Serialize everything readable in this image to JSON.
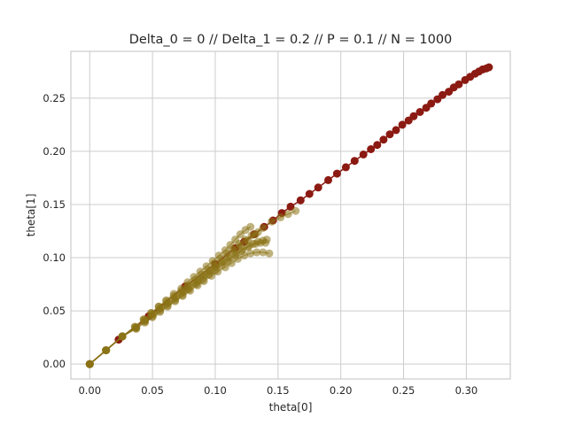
{
  "chart_data": {
    "type": "scatter",
    "title": "Delta_0 = 0 // Delta_1 = 0.2 // P = 0.1 // N = 1000",
    "xlabel": "theta[0]",
    "ylabel": "theta[1]",
    "xlim": [
      -0.015,
      0.335
    ],
    "ylim": [
      -0.014,
      0.294
    ],
    "xticks": [
      0.0,
      0.05,
      0.1,
      0.15,
      0.2,
      0.25,
      0.3
    ],
    "xtick_labels": [
      "0.00",
      "0.05",
      "0.10",
      "0.15",
      "0.20",
      "0.25",
      "0.30"
    ],
    "yticks": [
      0.0,
      0.05,
      0.1,
      0.15,
      0.2,
      0.25
    ],
    "ytick_labels": [
      "0.00",
      "0.05",
      "0.10",
      "0.15",
      "0.20",
      "0.25"
    ],
    "grid": true,
    "series": [
      {
        "color": "#8b1a12",
        "points": [
          [
            0.0,
            0.0
          ],
          [
            0.023,
            0.023
          ],
          [
            0.047,
            0.045
          ],
          [
            0.076,
            0.073
          ],
          [
            0.1,
            0.094
          ],
          [
            0.116,
            0.109
          ],
          [
            0.123,
            0.115
          ],
          [
            0.131,
            0.122
          ],
          [
            0.139,
            0.129
          ],
          [
            0.146,
            0.135
          ],
          [
            0.153,
            0.142
          ],
          [
            0.16,
            0.148
          ],
          [
            0.168,
            0.154
          ],
          [
            0.175,
            0.16
          ],
          [
            0.182,
            0.166
          ],
          [
            0.19,
            0.173
          ],
          [
            0.197,
            0.179
          ],
          [
            0.204,
            0.185
          ],
          [
            0.211,
            0.191
          ],
          [
            0.218,
            0.197
          ],
          [
            0.224,
            0.202
          ],
          [
            0.229,
            0.206
          ],
          [
            0.234,
            0.211
          ],
          [
            0.239,
            0.216
          ],
          [
            0.244,
            0.22
          ],
          [
            0.249,
            0.225
          ],
          [
            0.254,
            0.229
          ],
          [
            0.258,
            0.233
          ],
          [
            0.263,
            0.237
          ],
          [
            0.268,
            0.241
          ],
          [
            0.272,
            0.245
          ],
          [
            0.277,
            0.249
          ],
          [
            0.281,
            0.253
          ],
          [
            0.286,
            0.256
          ],
          [
            0.29,
            0.26
          ],
          [
            0.294,
            0.263
          ],
          [
            0.299,
            0.267
          ],
          [
            0.303,
            0.27
          ],
          [
            0.307,
            0.273
          ],
          [
            0.31,
            0.275
          ],
          [
            0.313,
            0.277
          ],
          [
            0.316,
            0.278
          ],
          [
            0.318,
            0.279
          ]
        ]
      },
      {
        "color": "#8a7215",
        "points": [
          [
            0.0,
            0.0
          ],
          [
            0.013,
            0.013
          ],
          [
            0.026,
            0.026
          ],
          [
            0.037,
            0.034
          ],
          [
            0.044,
            0.041
          ],
          [
            0.05,
            0.047
          ],
          [
            0.056,
            0.052
          ],
          [
            0.062,
            0.057
          ],
          [
            0.068,
            0.062
          ],
          [
            0.073,
            0.067
          ],
          [
            0.078,
            0.071
          ],
          [
            0.083,
            0.076
          ],
          [
            0.087,
            0.08
          ],
          [
            0.092,
            0.084
          ],
          [
            0.096,
            0.088
          ],
          [
            0.1,
            0.092
          ],
          [
            0.105,
            0.096
          ],
          [
            0.11,
            0.101
          ],
          [
            0.115,
            0.106
          ],
          [
            0.12,
            0.111
          ],
          [
            0.126,
            0.116
          ],
          [
            0.132,
            0.122
          ],
          [
            0.138,
            0.128
          ],
          [
            0.145,
            0.134
          ],
          [
            0.152,
            0.138
          ],
          [
            0.158,
            0.141
          ],
          [
            0.164,
            0.144
          ]
        ]
      },
      {
        "color": "#8a7215",
        "points": [
          [
            0.0,
            0.0
          ],
          [
            0.013,
            0.013
          ],
          [
            0.026,
            0.026
          ],
          [
            0.037,
            0.034
          ],
          [
            0.044,
            0.04
          ],
          [
            0.05,
            0.045
          ],
          [
            0.056,
            0.05
          ],
          [
            0.062,
            0.055
          ],
          [
            0.068,
            0.06
          ],
          [
            0.074,
            0.065
          ],
          [
            0.079,
            0.07
          ],
          [
            0.085,
            0.075
          ],
          [
            0.09,
            0.079
          ],
          [
            0.095,
            0.084
          ],
          [
            0.1,
            0.088
          ],
          [
            0.105,
            0.093
          ],
          [
            0.11,
            0.097
          ],
          [
            0.116,
            0.102
          ],
          [
            0.121,
            0.106
          ],
          [
            0.126,
            0.11
          ],
          [
            0.13,
            0.113
          ],
          [
            0.134,
            0.115
          ],
          [
            0.138,
            0.116
          ],
          [
            0.141,
            0.117
          ]
        ]
      },
      {
        "color": "#8a7215",
        "points": [
          [
            0.0,
            0.0
          ],
          [
            0.013,
            0.013
          ],
          [
            0.026,
            0.026
          ],
          [
            0.037,
            0.033
          ],
          [
            0.044,
            0.039
          ],
          [
            0.05,
            0.044
          ],
          [
            0.056,
            0.049
          ],
          [
            0.062,
            0.054
          ],
          [
            0.068,
            0.059
          ],
          [
            0.074,
            0.064
          ],
          [
            0.08,
            0.069
          ],
          [
            0.086,
            0.074
          ],
          [
            0.091,
            0.078
          ],
          [
            0.097,
            0.083
          ],
          [
            0.102,
            0.087
          ],
          [
            0.108,
            0.091
          ],
          [
            0.113,
            0.095
          ],
          [
            0.118,
            0.099
          ],
          [
            0.123,
            0.102
          ],
          [
            0.128,
            0.104
          ],
          [
            0.133,
            0.105
          ],
          [
            0.138,
            0.105
          ],
          [
            0.143,
            0.104
          ]
        ]
      },
      {
        "color": "#8a7215",
        "points": [
          [
            0.0,
            0.0
          ],
          [
            0.013,
            0.013
          ],
          [
            0.026,
            0.026
          ],
          [
            0.036,
            0.035
          ],
          [
            0.043,
            0.042
          ],
          [
            0.049,
            0.048
          ],
          [
            0.055,
            0.054
          ],
          [
            0.061,
            0.06
          ],
          [
            0.067,
            0.066
          ],
          [
            0.073,
            0.071
          ],
          [
            0.078,
            0.077
          ],
          [
            0.083,
            0.082
          ],
          [
            0.088,
            0.087
          ],
          [
            0.093,
            0.092
          ],
          [
            0.098,
            0.097
          ],
          [
            0.103,
            0.102
          ],
          [
            0.108,
            0.107
          ],
          [
            0.112,
            0.112
          ],
          [
            0.116,
            0.117
          ],
          [
            0.12,
            0.122
          ],
          [
            0.124,
            0.126
          ],
          [
            0.128,
            0.129
          ]
        ]
      },
      {
        "color": "#8a7215",
        "points": [
          [
            0.0,
            0.0
          ],
          [
            0.013,
            0.013
          ],
          [
            0.026,
            0.026
          ],
          [
            0.037,
            0.034
          ],
          [
            0.044,
            0.041
          ],
          [
            0.051,
            0.047
          ],
          [
            0.057,
            0.053
          ],
          [
            0.063,
            0.058
          ],
          [
            0.069,
            0.063
          ],
          [
            0.075,
            0.068
          ],
          [
            0.08,
            0.073
          ],
          [
            0.086,
            0.078
          ],
          [
            0.091,
            0.083
          ],
          [
            0.096,
            0.087
          ],
          [
            0.101,
            0.091
          ],
          [
            0.107,
            0.096
          ],
          [
            0.112,
            0.1
          ],
          [
            0.117,
            0.104
          ],
          [
            0.122,
            0.108
          ],
          [
            0.127,
            0.111
          ],
          [
            0.132,
            0.113
          ],
          [
            0.136,
            0.114
          ],
          [
            0.14,
            0.114
          ]
        ]
      },
      {
        "color": "#8a7215",
        "points": [
          [
            0.0,
            0.0
          ],
          [
            0.013,
            0.013
          ],
          [
            0.026,
            0.026
          ],
          [
            0.036,
            0.035
          ],
          [
            0.043,
            0.042
          ],
          [
            0.049,
            0.048
          ],
          [
            0.055,
            0.054
          ],
          [
            0.061,
            0.059
          ],
          [
            0.067,
            0.064
          ],
          [
            0.073,
            0.069
          ],
          [
            0.078,
            0.074
          ],
          [
            0.084,
            0.079
          ],
          [
            0.089,
            0.084
          ],
          [
            0.094,
            0.089
          ],
          [
            0.099,
            0.094
          ],
          [
            0.104,
            0.099
          ],
          [
            0.109,
            0.104
          ],
          [
            0.114,
            0.108
          ],
          [
            0.119,
            0.113
          ],
          [
            0.124,
            0.117
          ],
          [
            0.129,
            0.121
          ],
          [
            0.134,
            0.124
          ]
        ]
      }
    ]
  }
}
